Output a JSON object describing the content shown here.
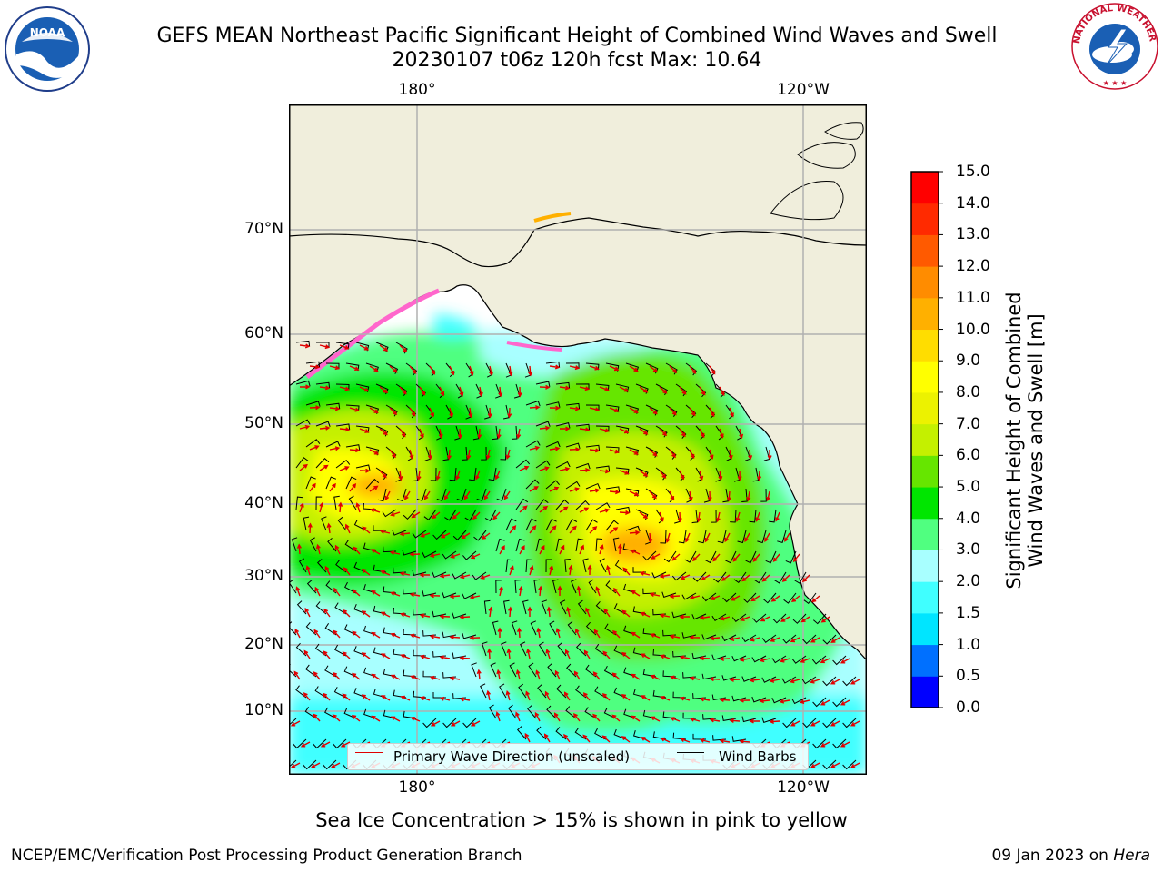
{
  "title": {
    "line1": "GEFS MEAN Northeast Pacific Significant Height of Combined Wind Waves and Swell",
    "line2": "20230107 t06z 120h fcst   Max: 10.64"
  },
  "map": {
    "lon_labels_top": [
      "180°",
      "120°W"
    ],
    "lon_labels_bottom": [
      "180°",
      "120°W"
    ],
    "lat_labels": [
      "70°N",
      "60°N",
      "50°N",
      "40°N",
      "30°N",
      "20°N",
      "10°N"
    ],
    "colors": {
      "land": "#f0eedc",
      "grid": "#b0b0b0",
      "wave_arrow": "#e00000",
      "wind_barb": "#000000"
    }
  },
  "legend": {
    "items": [
      {
        "label": "Primary Wave Direction (unscaled)",
        "color": "#e00000"
      },
      {
        "label": "Wind Barbs",
        "color": "#000000"
      }
    ]
  },
  "colorbar": {
    "ticks": [
      "0.0",
      "0.5",
      "1.0",
      "1.5",
      "2.0",
      "3.0",
      "4.0",
      "5.0",
      "6.0",
      "7.0",
      "8.0",
      "9.0",
      "10.0",
      "11.0",
      "12.0",
      "13.0",
      "14.0",
      "15.0"
    ],
    "colors": [
      "#0000ff",
      "#0070ff",
      "#00e5ff",
      "#40ffff",
      "#a8ffff",
      "#50ff80",
      "#00e600",
      "#66e600",
      "#c4f000",
      "#ecf200",
      "#ffff00",
      "#ffdd00",
      "#ffb000",
      "#ff8c00",
      "#ff5a00",
      "#ff2a00",
      "#ff0000"
    ],
    "label_line1": "Significant Height of Combined",
    "label_line2": "Wind Waves and Swell [m]"
  },
  "note": "Sea Ice Concentration > 15% is shown in pink to yellow",
  "footer": {
    "left": "NCEP/EMC/Verification Post Processing Product Generation Branch",
    "right_prefix": "09 Jan 2023 on ",
    "right_host": "Hera"
  },
  "logos": {
    "left": "NOAA",
    "right_ring_text": "NATIONAL WEATHER SERVICE"
  }
}
